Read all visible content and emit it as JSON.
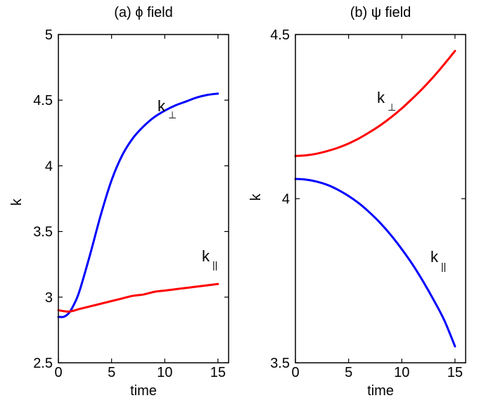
{
  "chart_data": [
    {
      "type": "line",
      "title": "(a) ϕ field",
      "xlabel": "time",
      "ylabel": "k",
      "xlim": [
        0,
        16
      ],
      "ylim": [
        2.5,
        5
      ],
      "xticks": [
        "0",
        "5",
        "10",
        "15"
      ],
      "yticks": [
        "2.5",
        "3",
        "3.5",
        "4",
        "4.5",
        "5"
      ],
      "series": [
        {
          "color": "#0000ff",
          "label_main": "k",
          "label_sub": "⊥",
          "x": [
            0,
            0.5,
            1,
            1.5,
            2,
            3,
            4,
            5,
            6,
            7,
            8,
            9,
            10,
            11,
            12,
            13,
            14,
            15
          ],
          "y": [
            2.85,
            2.85,
            2.88,
            2.95,
            3.05,
            3.33,
            3.63,
            3.89,
            4.08,
            4.21,
            4.3,
            4.37,
            4.42,
            4.46,
            4.49,
            4.52,
            4.54,
            4.55
          ]
        },
        {
          "color": "#ff0000",
          "label_main": "k",
          "label_sub": "||",
          "x": [
            0,
            1,
            2,
            3,
            4,
            5,
            6,
            7,
            8,
            9,
            10,
            11,
            12,
            13,
            14,
            15
          ],
          "y": [
            2.9,
            2.89,
            2.91,
            2.93,
            2.95,
            2.97,
            2.99,
            3.01,
            3.02,
            3.04,
            3.05,
            3.06,
            3.07,
            3.08,
            3.09,
            3.1
          ]
        }
      ]
    },
    {
      "type": "line",
      "title": "(b) ψ field",
      "xlabel": "time",
      "ylabel": "k",
      "xlim": [
        0,
        16
      ],
      "ylim": [
        3.5,
        4.5
      ],
      "xticks": [
        "0",
        "5",
        "10",
        "15"
      ],
      "yticks": [
        "3.5",
        "4",
        "4.5"
      ],
      "series": [
        {
          "color": "#ff0000",
          "label_main": "k",
          "label_sub": "⊥",
          "x": [
            0,
            1,
            2,
            3,
            4,
            5,
            6,
            7,
            8,
            9,
            10,
            11,
            12,
            13,
            14,
            15
          ],
          "y": [
            4.13,
            4.132,
            4.137,
            4.145,
            4.155,
            4.168,
            4.184,
            4.203,
            4.224,
            4.248,
            4.275,
            4.305,
            4.337,
            4.372,
            4.41,
            4.45
          ]
        },
        {
          "color": "#0000ff",
          "label_main": "k",
          "label_sub": "||",
          "x": [
            0,
            1,
            2,
            3,
            4,
            5,
            6,
            7,
            8,
            9,
            10,
            11,
            12,
            13,
            14,
            15
          ],
          "y": [
            4.06,
            4.058,
            4.052,
            4.042,
            4.027,
            4.008,
            3.985,
            3.957,
            3.925,
            3.888,
            3.846,
            3.8,
            3.748,
            3.691,
            3.629,
            3.55
          ]
        }
      ]
    }
  ]
}
